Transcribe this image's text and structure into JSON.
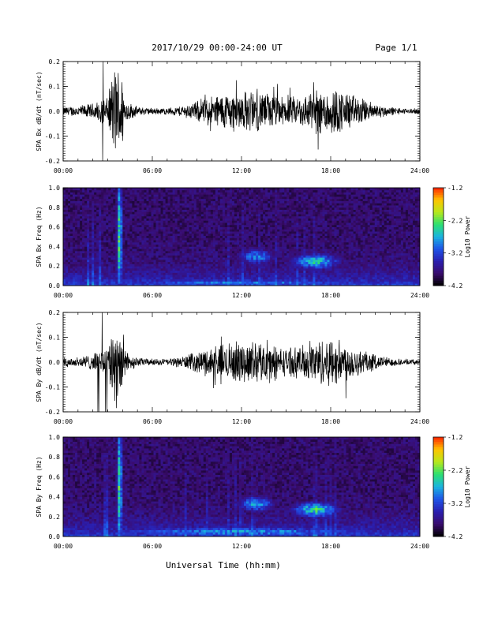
{
  "header": {
    "date_range": "2017/10/29  00:00-24:00 UT",
    "page": "Page 1/1"
  },
  "footer": {
    "xlabel": "Universal Time (hh:mm)"
  },
  "colors": {
    "trace": "#000000",
    "colormap": [
      "#000000",
      "#3a0c6e",
      "#2a1fb0",
      "#1f54e8",
      "#1ab4e0",
      "#2ce070",
      "#b8e81c",
      "#ffc400",
      "#ff2200"
    ]
  },
  "chart_data": [
    {
      "id": "bx-waveform",
      "type": "line",
      "ylabel": "SPA Bx dB/dt (nT/sec)",
      "ylim": [
        -0.2,
        0.2
      ],
      "yticks": [
        "-0.2",
        "-0.1",
        "0.0",
        "0.1",
        "0.2"
      ],
      "xlim": [
        0,
        24
      ],
      "xticks": [
        "00:00",
        "06:00",
        "12:00",
        "18:00",
        "24:00"
      ],
      "envelope": {
        "hours": [
          0,
          1,
          2,
          2.5,
          3,
          3.4,
          3.6,
          3.9,
          4.2,
          5,
          6,
          7,
          8,
          9,
          10,
          11,
          12,
          13,
          14,
          15,
          16,
          17,
          18,
          19,
          20,
          21,
          22,
          23,
          24
        ],
        "amplitude": [
          0.02,
          0.025,
          0.035,
          0.05,
          0.06,
          0.2,
          0.2,
          0.2,
          0.05,
          0.02,
          0.015,
          0.015,
          0.025,
          0.045,
          0.07,
          0.085,
          0.09,
          0.09,
          0.08,
          0.06,
          0.07,
          0.1,
          0.11,
          0.09,
          0.06,
          0.035,
          0.02,
          0.012,
          0.012
        ]
      }
    },
    {
      "id": "bx-spectrogram",
      "type": "heatmap",
      "ylabel": "SPA Bx Freq (Hz)",
      "ylim": [
        0.0,
        1.0
      ],
      "yticks": [
        "0.0",
        "0.2",
        "0.4",
        "0.6",
        "0.8",
        "1.0"
      ],
      "xlim": [
        0,
        24
      ],
      "xticks": [
        "00:00",
        "06:00",
        "12:00",
        "18:00",
        "24:00"
      ],
      "colorbar": {
        "label": "Log10 Power",
        "range": [
          -4.2,
          -1.2
        ],
        "ticks": [
          "-1.2",
          "-2.2",
          "-3.2",
          "-4.2"
        ]
      },
      "features": [
        {
          "t": 3.8,
          "f": 0.5,
          "dt": 0.18,
          "df": 0.7,
          "level": -2.4
        },
        {
          "t": 13.0,
          "f": 0.3,
          "dt": 1.2,
          "df": 0.08,
          "level": -2.9
        },
        {
          "t": 17.0,
          "f": 0.25,
          "dt": 1.6,
          "df": 0.08,
          "level": -2.6
        },
        {
          "t": 12.0,
          "f": 0.03,
          "dt": 10.0,
          "df": 0.04,
          "level": -3.0
        }
      ]
    },
    {
      "id": "by-waveform",
      "type": "line",
      "ylabel": "SPA By dB/dt (nT/sec)",
      "ylim": [
        -0.2,
        0.2
      ],
      "yticks": [
        "-0.2",
        "-0.1",
        "0.0",
        "0.1",
        "0.2"
      ],
      "xlim": [
        0,
        24
      ],
      "xticks": [
        "00:00",
        "06:00",
        "12:00",
        "18:00",
        "24:00"
      ],
      "envelope": {
        "hours": [
          0,
          1,
          2,
          2.5,
          3,
          3.4,
          3.6,
          3.9,
          4.2,
          5,
          6,
          7,
          8,
          9,
          10,
          11,
          12,
          13,
          14,
          15,
          16,
          17,
          18,
          19,
          20,
          21,
          22,
          23,
          24
        ],
        "amplitude": [
          0.02,
          0.025,
          0.035,
          0.05,
          0.06,
          0.2,
          0.2,
          0.2,
          0.05,
          0.02,
          0.015,
          0.015,
          0.025,
          0.045,
          0.07,
          0.085,
          0.09,
          0.09,
          0.08,
          0.06,
          0.07,
          0.1,
          0.11,
          0.09,
          0.06,
          0.035,
          0.02,
          0.012,
          0.012
        ]
      }
    },
    {
      "id": "by-spectrogram",
      "type": "heatmap",
      "ylabel": "SPA By Freq (Hz)",
      "ylim": [
        0.0,
        1.0
      ],
      "yticks": [
        "0.0",
        "0.2",
        "0.4",
        "0.6",
        "0.8",
        "1.0"
      ],
      "xlim": [
        0,
        24
      ],
      "xticks": [
        "00:00",
        "06:00",
        "12:00",
        "18:00",
        "24:00"
      ],
      "colorbar": {
        "label": "Log10 Power",
        "range": [
          -4.2,
          -1.2
        ],
        "ticks": [
          "-1.2",
          "-2.2",
          "-3.2",
          "-4.2"
        ]
      },
      "features": [
        {
          "t": 3.8,
          "f": 0.5,
          "dt": 0.18,
          "df": 0.7,
          "level": -2.4
        },
        {
          "t": 13.0,
          "f": 0.33,
          "dt": 1.2,
          "df": 0.08,
          "level": -2.8
        },
        {
          "t": 17.0,
          "f": 0.27,
          "dt": 1.6,
          "df": 0.08,
          "level": -2.5
        },
        {
          "t": 12.0,
          "f": 0.05,
          "dt": 10.0,
          "df": 0.05,
          "level": -2.9
        }
      ]
    }
  ]
}
